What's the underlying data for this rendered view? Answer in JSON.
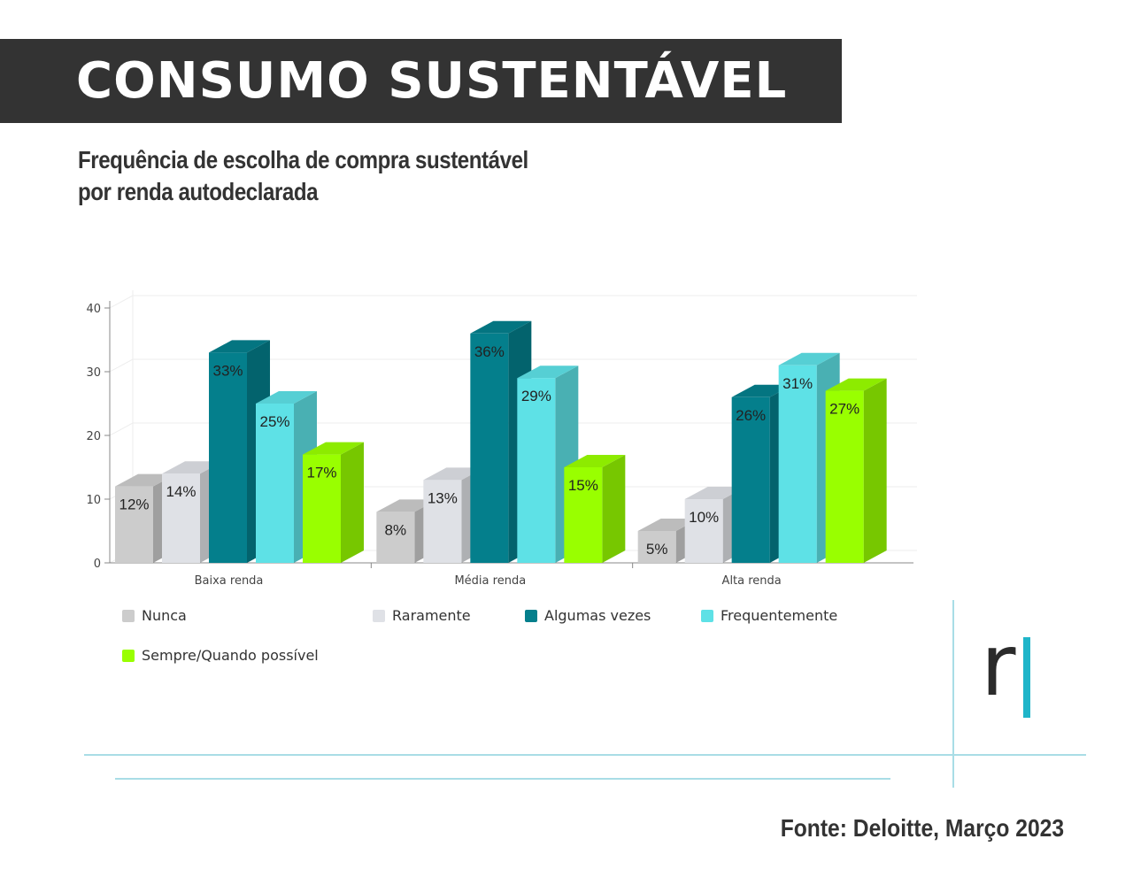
{
  "header": {
    "title": "CONSUMO SUSTENTÁVEL",
    "subtitle_line1": "Frequência de escolha de compra sustentável",
    "subtitle_line2": "por renda autodeclarada"
  },
  "footer": {
    "source": "Fonte: Deloitte, Março 2023"
  },
  "logo": {
    "letter": "r",
    "bar_color": "#1fb5c9"
  },
  "chart_data": {
    "type": "bar",
    "style": "3d-grouped",
    "title": "",
    "xlabel": "",
    "ylabel": "",
    "categories": [
      "Baixa renda",
      "Média renda",
      "Alta renda"
    ],
    "ylim": [
      0,
      40
    ],
    "yticks": [
      0,
      10,
      20,
      30,
      40
    ],
    "grid": true,
    "legend_position": "bottom",
    "series": [
      {
        "name": "Nunca",
        "color": "#cccccc",
        "values": [
          12,
          8,
          5
        ],
        "labels": [
          "12%",
          "8%",
          "5%"
        ]
      },
      {
        "name": "Raramente",
        "color": "#dfe1e6",
        "values": [
          14,
          13,
          10
        ],
        "labels": [
          "14%",
          "13%",
          "10%"
        ]
      },
      {
        "name": "Algumas vezes",
        "color": "#047f8c",
        "values": [
          33,
          36,
          26
        ],
        "labels": [
          "33%",
          "36%",
          "26%"
        ]
      },
      {
        "name": "Frequentemente",
        "color": "#5ee1e6",
        "values": [
          25,
          29,
          31
        ],
        "labels": [
          "25%",
          "29%",
          "31%"
        ]
      },
      {
        "name": "Sempre/Quando possível",
        "color": "#99ff00",
        "values": [
          17,
          15,
          27
        ],
        "labels": [
          "17%",
          "15%",
          "27%"
        ]
      }
    ]
  }
}
